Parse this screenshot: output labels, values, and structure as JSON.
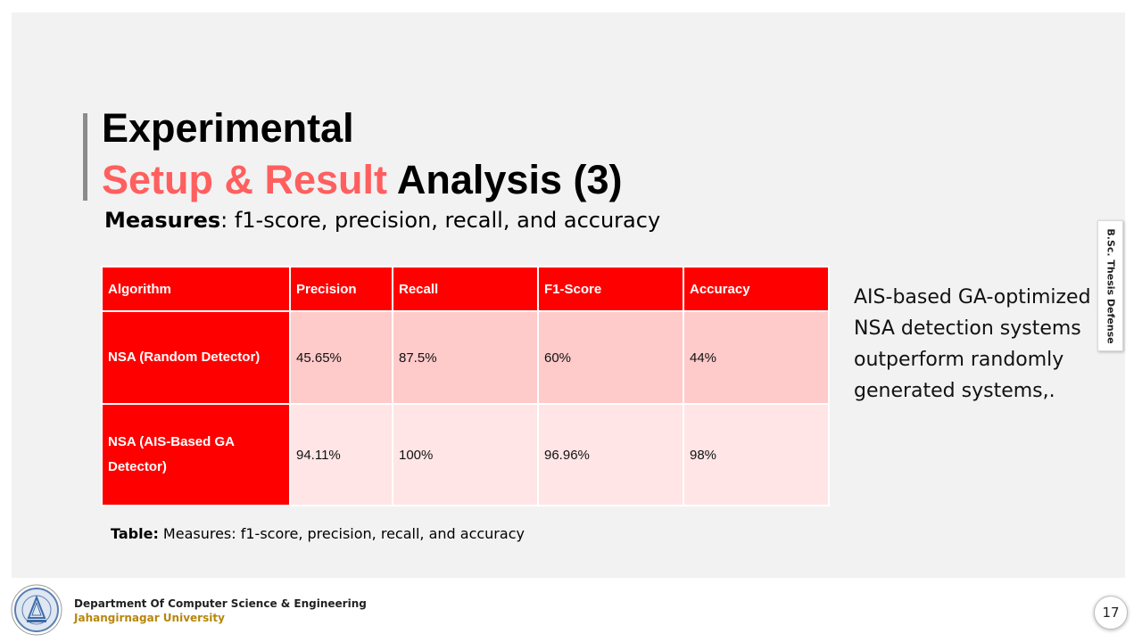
{
  "slide": {
    "title_line1": "Experimental",
    "title_line2_accent": "Setup & Result",
    "title_line2_rest": " Analysis (3)",
    "measures_label": "Measures",
    "measures_text": ": f1-score, precision, recall, and accuracy",
    "side_note": "AIS-based GA-optimized NSA detection systems outperform randomly generated systems,.",
    "side_tab": "B.Sc. Thesis Defense",
    "page_number": "17"
  },
  "table": {
    "headers": [
      "Algorithm",
      "Precision",
      "Recall",
      "F1-Score",
      "Accuracy"
    ],
    "rows": [
      {
        "algorithm": "NSA (Random Detector)",
        "precision": "45.65%",
        "recall": "87.5%",
        "f1": "60%",
        "accuracy": "44%"
      },
      {
        "algorithm": "NSA (AIS-Based GA Detector)",
        "precision": "94.11%",
        "recall": "100%",
        "f1": "96.96%",
        "accuracy": "98%"
      }
    ],
    "caption_label": "Table:",
    "caption_text": " Measures: f1-score, precision, recall, and accuracy"
  },
  "footer": {
    "department": "Department Of Computer Science & Engineering",
    "university": "Jahangirnagar University",
    "logo_icon": "university-seal-icon"
  },
  "colors": {
    "accent": "#ff5f5f",
    "table_header": "#ff0000",
    "row1_fill": "#ffcaca",
    "row2_fill": "#ffe5e5",
    "university_text": "#b8860b"
  }
}
